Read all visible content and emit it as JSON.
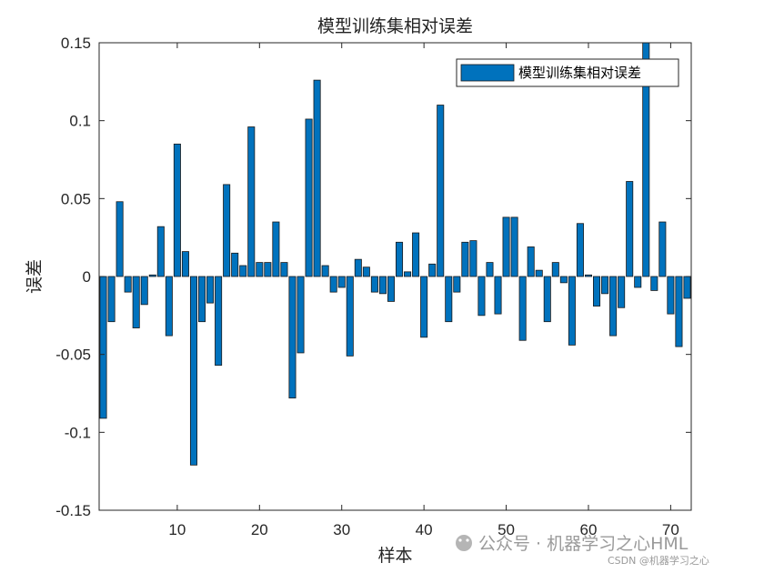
{
  "chart_data": {
    "type": "bar",
    "title": "模型训练集相对误差",
    "xlabel": "样本",
    "ylabel": "误差",
    "xlim": [
      0.5,
      72.5
    ],
    "ylim": [
      -0.15,
      0.15
    ],
    "xticks": [
      10,
      20,
      30,
      40,
      50,
      60,
      70
    ],
    "xtick_labels": [
      "10",
      "20",
      "30",
      "40",
      "50",
      "60",
      "70"
    ],
    "yticks": [
      -0.15,
      -0.1,
      -0.05,
      0,
      0.05,
      0.1,
      0.15
    ],
    "ytick_labels": [
      "-0.15",
      "-0.1",
      "-0.05",
      "0",
      "0.05",
      "0.1",
      "0.15"
    ],
    "grid": false,
    "legend_position": "top-right",
    "colors": {
      "bar": "#0072BD",
      "edge": "#1a1a1a",
      "axis": "#262626"
    },
    "series": [
      {
        "name": "模型训练集相对误差",
        "x": [
          1,
          2,
          3,
          4,
          5,
          6,
          7,
          8,
          9,
          10,
          11,
          12,
          13,
          14,
          15,
          16,
          17,
          18,
          19,
          20,
          21,
          22,
          23,
          24,
          25,
          26,
          27,
          28,
          29,
          30,
          31,
          32,
          33,
          34,
          35,
          36,
          37,
          38,
          39,
          40,
          41,
          42,
          43,
          44,
          45,
          46,
          47,
          48,
          49,
          50,
          51,
          52,
          53,
          54,
          55,
          56,
          57,
          58,
          59,
          60,
          61,
          62,
          63,
          64,
          65,
          66,
          67,
          68,
          69,
          70,
          71,
          72
        ],
        "values": [
          -0.091,
          -0.029,
          0.048,
          -0.01,
          -0.033,
          -0.018,
          0.001,
          0.032,
          -0.038,
          0.085,
          0.016,
          -0.121,
          -0.029,
          -0.017,
          -0.057,
          0.059,
          0.015,
          0.007,
          0.096,
          0.009,
          0.009,
          0.035,
          0.009,
          -0.078,
          -0.049,
          0.101,
          0.126,
          0.007,
          -0.01,
          -0.007,
          -0.051,
          0.011,
          0.006,
          -0.01,
          -0.011,
          -0.016,
          0.022,
          0.003,
          0.028,
          -0.039,
          0.008,
          0.11,
          -0.029,
          -0.01,
          0.022,
          0.023,
          -0.025,
          0.009,
          -0.024,
          0.038,
          0.038,
          -0.041,
          0.019,
          0.004,
          -0.029,
          0.009,
          -0.004,
          -0.044,
          0.034,
          0.001,
          -0.019,
          -0.011,
          -0.038,
          -0.02,
          0.061,
          -0.007,
          0.15,
          -0.009,
          0.035,
          -0.024,
          -0.045,
          -0.014
        ]
      }
    ]
  },
  "watermark": {
    "wechat_text": "公众号 · 机器学习之心HML",
    "csdn_text": "CSDN @机器学习之心"
  }
}
